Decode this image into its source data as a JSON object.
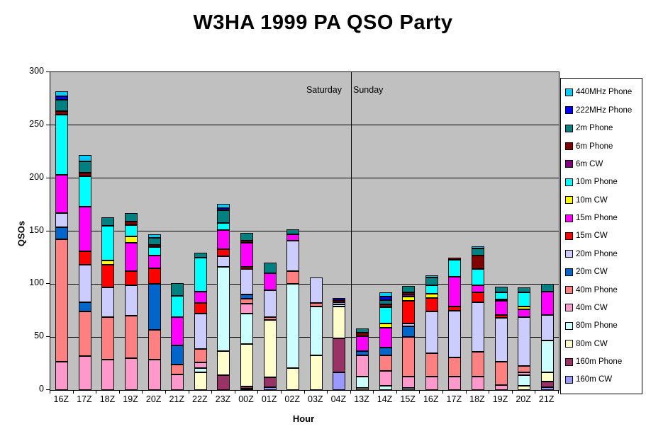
{
  "title": "W3HA 1999 PA QSO Party",
  "chart_data": {
    "type": "bar",
    "stacked": true,
    "title": "W3HA 1999 PA QSO Party",
    "xlabel": "Hour",
    "ylabel": "QSOs",
    "ylim": [
      0,
      300
    ],
    "yticks": [
      0,
      50,
      100,
      150,
      200,
      250,
      300
    ],
    "grid": true,
    "plot_bg": "#C0C0C0",
    "legend_position": "right",
    "legend_order": "top of legend = top of stack",
    "day_labels": {
      "left": "Saturday",
      "right": "Sunday",
      "divider_after_index": 12
    },
    "categories": [
      "16Z",
      "17Z",
      "18Z",
      "19Z",
      "20Z",
      "21Z",
      "22Z",
      "23Z",
      "00Z",
      "01Z",
      "02Z",
      "03Z",
      "04Z",
      "13Z",
      "14Z",
      "15Z",
      "16Z",
      "17Z",
      "18Z",
      "19Z",
      "20Z",
      "21Z"
    ],
    "series": [
      {
        "name": "160m CW",
        "color": "#9999FF",
        "values": [
          0,
          0,
          0,
          0,
          0,
          0,
          0,
          0,
          1,
          3,
          0,
          0,
          17,
          0,
          0,
          0,
          0,
          0,
          0,
          0,
          0,
          3
        ]
      },
      {
        "name": "160m Phone",
        "color": "#993366",
        "values": [
          0,
          0,
          0,
          0,
          0,
          0,
          0,
          14,
          2,
          9,
          0,
          0,
          32,
          0,
          0,
          0,
          0,
          0,
          0,
          0,
          0,
          5
        ]
      },
      {
        "name": "80m CW",
        "color": "#FFFFCC",
        "values": [
          0,
          0,
          0,
          0,
          0,
          0,
          17,
          23,
          40,
          54,
          21,
          33,
          30,
          2,
          0,
          0,
          0,
          0,
          0,
          0,
          4,
          9
        ]
      },
      {
        "name": "80m Phone",
        "color": "#CCFFFF",
        "values": [
          0,
          0,
          0,
          0,
          0,
          0,
          4,
          79,
          29,
          0,
          79,
          46,
          2,
          11,
          4,
          2,
          0,
          0,
          0,
          0,
          10,
          30
        ]
      },
      {
        "name": "40m CW",
        "color": "#FF99CC",
        "values": [
          27,
          32,
          29,
          30,
          29,
          15,
          5,
          0,
          9,
          0,
          0,
          0,
          0,
          20,
          14,
          11,
          13,
          13,
          13,
          5,
          3,
          0
        ]
      },
      {
        "name": "40m Phone",
        "color": "#FF8080",
        "values": [
          115,
          42,
          40,
          40,
          28,
          9,
          13,
          0,
          5,
          3,
          12,
          3,
          0,
          0,
          15,
          37,
          22,
          18,
          23,
          22,
          6,
          0
        ]
      },
      {
        "name": "20m CW",
        "color": "#0066CC",
        "values": [
          12,
          9,
          0,
          0,
          43,
          18,
          0,
          0,
          4,
          0,
          0,
          0,
          0,
          4,
          7,
          10,
          0,
          0,
          0,
          0,
          0,
          0
        ]
      },
      {
        "name": "20m Phone",
        "color": "#CCCCFF",
        "values": [
          13,
          35,
          28,
          29,
          0,
          0,
          33,
          10,
          24,
          25,
          29,
          24,
          2,
          0,
          0,
          3,
          39,
          44,
          47,
          41,
          46,
          24
        ]
      },
      {
        "name": "15m CW",
        "color": "#FF0000",
        "values": [
          0,
          13,
          21,
          13,
          15,
          0,
          10,
          7,
          2,
          0,
          0,
          0,
          0,
          0,
          0,
          21,
          13,
          4,
          9,
          3,
          0,
          0
        ]
      },
      {
        "name": "15m Phone",
        "color": "#FF00FF",
        "values": [
          36,
          42,
          0,
          27,
          12,
          27,
          11,
          18,
          23,
          16,
          6,
          0,
          0,
          14,
          19,
          0,
          0,
          28,
          7,
          13,
          7,
          22
        ]
      },
      {
        "name": "10m CW",
        "color": "#FFFF00",
        "values": [
          0,
          0,
          4,
          6,
          0,
          0,
          0,
          0,
          0,
          0,
          0,
          0,
          0,
          0,
          4,
          4,
          4,
          0,
          0,
          1,
          3,
          0
        ]
      },
      {
        "name": "10m Phone",
        "color": "#00FFFF",
        "values": [
          57,
          29,
          33,
          11,
          8,
          20,
          32,
          7,
          0,
          0,
          0,
          0,
          0,
          0,
          15,
          0,
          8,
          16,
          15,
          7,
          13,
          0
        ]
      },
      {
        "name": "6m CW",
        "color": "#800080",
        "values": [
          0,
          0,
          0,
          0,
          0,
          0,
          0,
          0,
          0,
          0,
          0,
          0,
          0,
          0,
          0,
          2,
          0,
          0,
          0,
          0,
          0,
          0
        ]
      },
      {
        "name": "6m Phone",
        "color": "#800000",
        "values": [
          3,
          3,
          0,
          3,
          2,
          0,
          0,
          0,
          2,
          0,
          0,
          0,
          2,
          3,
          3,
          2,
          0,
          2,
          13,
          0,
          0,
          0
        ]
      },
      {
        "name": "2m Phone",
        "color": "#008080",
        "values": [
          11,
          11,
          8,
          8,
          7,
          12,
          5,
          12,
          7,
          10,
          5,
          0,
          0,
          4,
          4,
          6,
          7,
          0,
          7,
          5,
          5,
          7
        ]
      },
      {
        "name": "222MHz Phone",
        "color": "#0000FF",
        "values": [
          3,
          0,
          0,
          0,
          0,
          0,
          0,
          2,
          0,
          0,
          0,
          0,
          2,
          0,
          3,
          0,
          0,
          0,
          0,
          0,
          0,
          0
        ]
      },
      {
        "name": "440MHz Phone",
        "color": "#00CCFF",
        "values": [
          5,
          6,
          0,
          0,
          3,
          0,
          0,
          4,
          0,
          0,
          0,
          0,
          0,
          0,
          4,
          0,
          2,
          0,
          2,
          0,
          0,
          0
        ]
      }
    ]
  }
}
